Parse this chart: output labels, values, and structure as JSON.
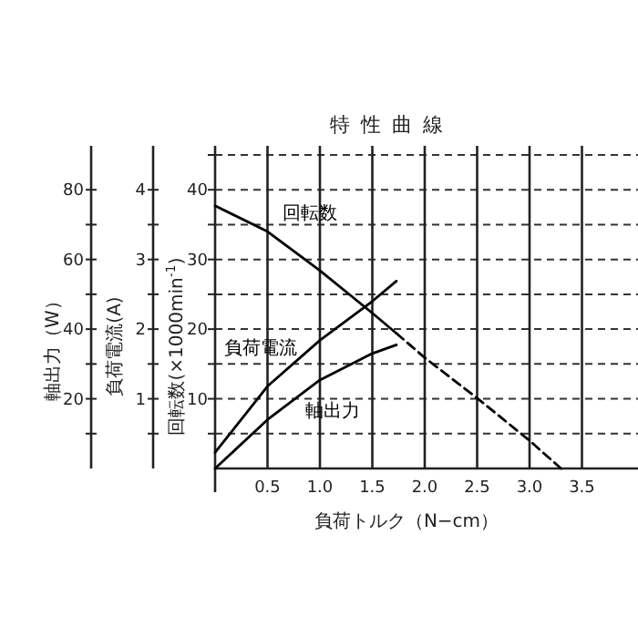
{
  "chart_data": {
    "type": "line",
    "title": "特性曲線",
    "xlabel": "負荷トルク（N−cm）",
    "ylabel": "回転数(×1000min$^{-1}$)",
    "y2label": "負荷電流(A)",
    "y3label": "軸出力（W）",
    "xlim": [
      0,
      4
    ],
    "xticks": [
      0.5,
      {
        "value": 1,
        "label": "1.0"
      },
      1.5,
      {
        "value": 2,
        "label": "2.0"
      },
      2.5,
      {
        "value": 3,
        "label": "3.0"
      },
      3.5
    ],
    "ylim": [
      0,
      45
    ],
    "yticks": [
      {
        "value": 5,
        "label": null
      },
      10,
      {
        "value": 15,
        "label": null
      },
      20,
      {
        "value": 25,
        "label": null
      },
      30,
      {
        "value": 35,
        "label": null
      },
      40,
      {
        "value": 45,
        "label": null
      }
    ],
    "y2lim": [
      0,
      4.5
    ],
    "y2ticks": [
      {
        "value": 0.5,
        "label": null
      },
      1,
      {
        "value": 1.5,
        "label": null
      },
      2,
      {
        "value": 2.5,
        "label": null
      },
      3,
      {
        "value": 3.5,
        "label": null
      },
      4
    ],
    "y3lim": [
      0,
      90
    ],
    "y3ticks": [
      {
        "value": 10,
        "label": null
      },
      20,
      {
        "value": 30,
        "label": null
      },
      40,
      {
        "value": 50,
        "label": null
      },
      60,
      {
        "value": 70,
        "label": null
      },
      80
    ],
    "grid": true,
    "marker": "none",
    "series": [
      {
        "name": "回転数",
        "color": "#000000",
        "line_style": "solid",
        "x": [
          0,
          0.5,
          1,
          1.5,
          1.73
        ],
        "values": [
          37.7,
          34.0,
          28.4,
          22.3,
          19.4
        ]
      },
      {
        "color": "#000000",
        "line_style": "dashed",
        "x": [
          1.73,
          2,
          2.5,
          3,
          3.3
        ],
        "values": [
          19.4,
          15.9,
          10.1,
          4.0,
          0
        ]
      },
      {
        "name": "負荷電流",
        "color": "#000000",
        "line_style": "solid",
        "axis": "y2",
        "x": [
          0,
          0.5,
          1,
          1.5,
          1.73
        ],
        "values": [
          0.23,
          1.18,
          1.84,
          2.4,
          2.69
        ]
      },
      {
        "name": "軸出力",
        "color": "#000000",
        "line_style": "solid",
        "axis": "y3",
        "x": [
          0,
          0.5,
          1,
          1.5,
          1.73
        ],
        "values": [
          0,
          14,
          25.4,
          33,
          35.5
        ]
      }
    ]
  }
}
